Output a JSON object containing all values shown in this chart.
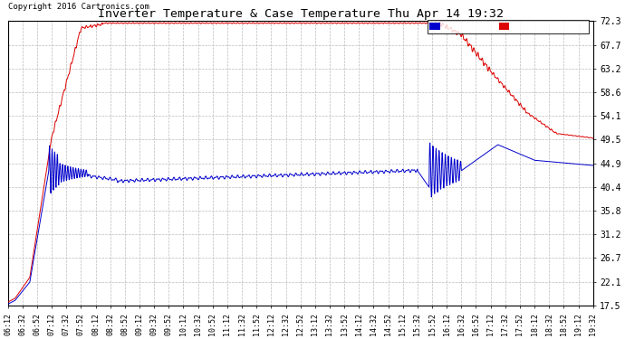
{
  "title": "Inverter Temperature & Case Temperature Thu Apr 14 19:32",
  "copyright": "Copyright 2016 Cartronics.com",
  "background_color": "#ffffff",
  "plot_bg_color": "#ffffff",
  "grid_color": "#bbbbbb",
  "ylim": [
    17.5,
    72.3
  ],
  "yticks": [
    17.5,
    22.1,
    26.7,
    31.2,
    35.8,
    40.4,
    44.9,
    49.5,
    54.1,
    58.6,
    63.2,
    67.7,
    72.3
  ],
  "xtick_labels": [
    "06:12",
    "06:32",
    "06:52",
    "07:12",
    "07:32",
    "07:52",
    "08:12",
    "08:32",
    "08:52",
    "09:12",
    "09:32",
    "09:52",
    "10:12",
    "10:32",
    "10:52",
    "11:12",
    "11:32",
    "11:52",
    "12:12",
    "12:32",
    "12:52",
    "13:12",
    "13:32",
    "13:52",
    "14:12",
    "14:32",
    "14:52",
    "15:12",
    "15:32",
    "15:52",
    "16:12",
    "16:32",
    "16:52",
    "17:12",
    "17:32",
    "17:52",
    "18:12",
    "18:32",
    "18:52",
    "19:12",
    "19:32"
  ],
  "inverter_color": "#dd0000",
  "case_color": "#0000cc",
  "legend_case_bg": "#0000cc",
  "legend_inverter_bg": "#dd0000",
  "legend_text_color": "#ffffff"
}
